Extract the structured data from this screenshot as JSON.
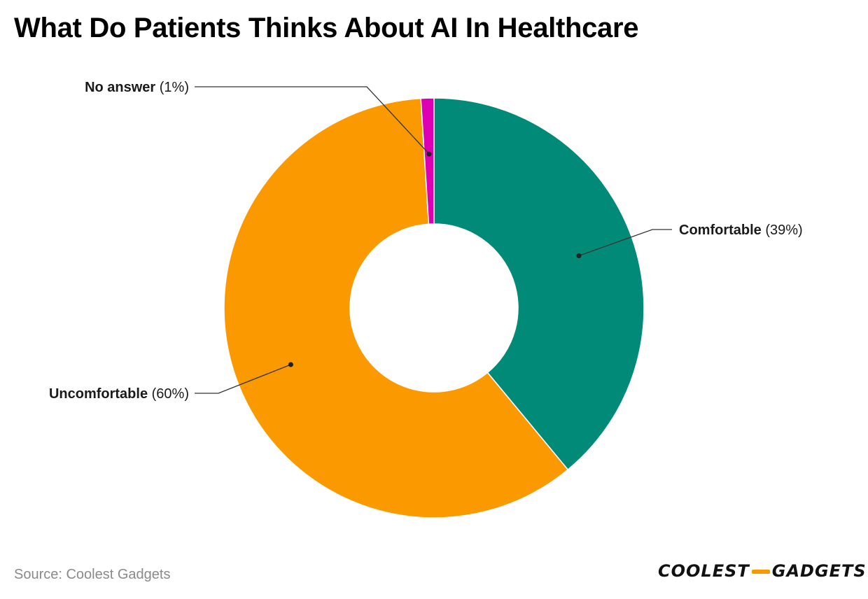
{
  "title": "What Do Patients Thinks About AI In Healthcare",
  "source": "Source: Coolest Gadgets",
  "logo": {
    "left": "COOLEST",
    "right": "GADGETS",
    "accent": "#f59a00"
  },
  "chart_data": {
    "type": "pie",
    "donut": true,
    "title": "What Do Patients Thinks About AI In Healthcare",
    "series": [
      {
        "name": "Comfortable",
        "value": 39,
        "pct_label": "(39%)",
        "color": "#028a78"
      },
      {
        "name": "Uncomfortable",
        "value": 60,
        "pct_label": "(60%)",
        "color": "#fb9900"
      },
      {
        "name": "No answer",
        "value": 1,
        "pct_label": "(1%)",
        "color": "#dd00b3"
      }
    ]
  }
}
